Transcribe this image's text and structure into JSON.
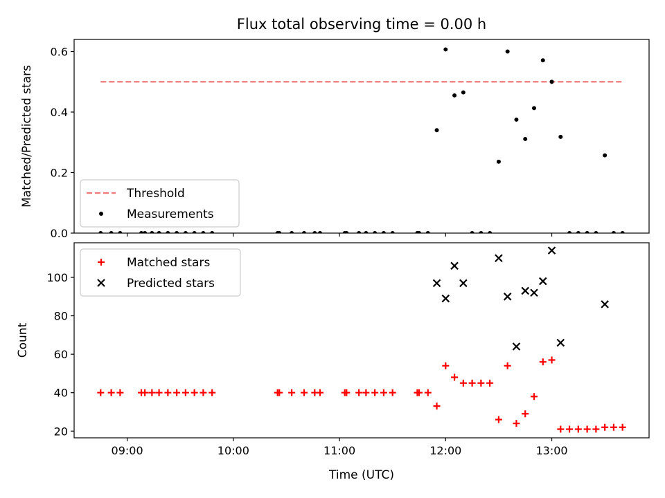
{
  "chart_data": [
    {
      "type": "scatter",
      "title": "Flux total observing time = 0.00 h",
      "xlabel": "",
      "ylabel": "Matched/Predicted stars",
      "xlim": [
        "08:30",
        "13:55"
      ],
      "ylim": [
        0,
        0.64
      ],
      "xticks": [
        "09:00",
        "10:00",
        "11:00",
        "12:00",
        "13:00"
      ],
      "yticks": [
        "0.0",
        "0.2",
        "0.4",
        "0.6"
      ],
      "legend_position": "lower-left",
      "threshold": {
        "name": "Threshold",
        "value": 0.5,
        "x_range": [
          "08:45",
          "13:40"
        ],
        "color": "#f07878",
        "style": "dashed"
      },
      "series": [
        {
          "name": "Measurements",
          "color": "#000000",
          "marker": "dot",
          "points": [
            [
              "08:45",
              0
            ],
            [
              "08:51",
              0
            ],
            [
              "08:56",
              0
            ],
            [
              "09:08",
              0
            ],
            [
              "09:10",
              0
            ],
            [
              "09:14",
              0
            ],
            [
              "09:18",
              0
            ],
            [
              "09:23",
              0
            ],
            [
              "09:28",
              0
            ],
            [
              "09:33",
              0
            ],
            [
              "09:38",
              0
            ],
            [
              "09:43",
              0
            ],
            [
              "09:48",
              0
            ],
            [
              "10:25",
              0
            ],
            [
              "10:26",
              0
            ],
            [
              "10:33",
              0
            ],
            [
              "10:40",
              0
            ],
            [
              "10:46",
              0
            ],
            [
              "10:49",
              0
            ],
            [
              "11:03",
              0
            ],
            [
              "11:04",
              0
            ],
            [
              "11:11",
              0
            ],
            [
              "11:15",
              0
            ],
            [
              "11:20",
              0
            ],
            [
              "11:25",
              0
            ],
            [
              "11:30",
              0
            ],
            [
              "11:44",
              0
            ],
            [
              "11:45",
              0
            ],
            [
              "11:50",
              0
            ],
            [
              "11:55",
              0.34
            ],
            [
              "12:00",
              0.607
            ],
            [
              "12:05",
              0.455
            ],
            [
              "12:10",
              0.465
            ],
            [
              "12:15",
              0
            ],
            [
              "12:20",
              0
            ],
            [
              "12:25",
              0
            ],
            [
              "12:30",
              0.236
            ],
            [
              "12:35",
              0.6
            ],
            [
              "12:40",
              0.375
            ],
            [
              "12:45",
              0.311
            ],
            [
              "12:50",
              0.413
            ],
            [
              "12:55",
              0.571
            ],
            [
              "13:00",
              0.5
            ],
            [
              "13:05",
              0.318
            ],
            [
              "13:10",
              0
            ],
            [
              "13:15",
              0
            ],
            [
              "13:20",
              0
            ],
            [
              "13:25",
              0
            ],
            [
              "13:30",
              0.257
            ],
            [
              "13:35",
              0
            ],
            [
              "13:40",
              0
            ]
          ]
        }
      ]
    },
    {
      "type": "scatter",
      "title": "",
      "xlabel": "Time (UTC)",
      "ylabel": "Count",
      "xlim": [
        "08:30",
        "13:55"
      ],
      "ylim": [
        16.5,
        118
      ],
      "xticks": [
        "09:00",
        "10:00",
        "11:00",
        "12:00",
        "13:00"
      ],
      "yticks": [
        "20",
        "40",
        "60",
        "80",
        "100"
      ],
      "legend_position": "upper-left",
      "series": [
        {
          "name": "Matched stars",
          "color": "#ff0000",
          "marker": "plus",
          "points": [
            [
              "08:45",
              40
            ],
            [
              "08:51",
              40
            ],
            [
              "08:56",
              40
            ],
            [
              "09:08",
              40
            ],
            [
              "09:10",
              40
            ],
            [
              "09:14",
              40
            ],
            [
              "09:18",
              40
            ],
            [
              "09:23",
              40
            ],
            [
              "09:28",
              40
            ],
            [
              "09:33",
              40
            ],
            [
              "09:38",
              40
            ],
            [
              "09:43",
              40
            ],
            [
              "09:48",
              40
            ],
            [
              "10:25",
              40
            ],
            [
              "10:26",
              40
            ],
            [
              "10:33",
              40
            ],
            [
              "10:40",
              40
            ],
            [
              "10:46",
              40
            ],
            [
              "10:49",
              40
            ],
            [
              "11:03",
              40
            ],
            [
              "11:04",
              40
            ],
            [
              "11:11",
              40
            ],
            [
              "11:15",
              40
            ],
            [
              "11:20",
              40
            ],
            [
              "11:25",
              40
            ],
            [
              "11:30",
              40
            ],
            [
              "11:44",
              40
            ],
            [
              "11:45",
              40
            ],
            [
              "11:50",
              40
            ],
            [
              "11:55",
              33
            ],
            [
              "12:00",
              54
            ],
            [
              "12:05",
              48
            ],
            [
              "12:10",
              45
            ],
            [
              "12:15",
              45
            ],
            [
              "12:20",
              45
            ],
            [
              "12:25",
              45
            ],
            [
              "12:30",
              26
            ],
            [
              "12:35",
              54
            ],
            [
              "12:40",
              24
            ],
            [
              "12:45",
              29
            ],
            [
              "12:50",
              38
            ],
            [
              "12:55",
              56
            ],
            [
              "13:00",
              57
            ],
            [
              "13:05",
              21
            ],
            [
              "13:10",
              21
            ],
            [
              "13:15",
              21
            ],
            [
              "13:20",
              21
            ],
            [
              "13:25",
              21
            ],
            [
              "13:30",
              22
            ],
            [
              "13:35",
              22
            ],
            [
              "13:40",
              22
            ]
          ]
        },
        {
          "name": "Predicted stars",
          "color": "#000000",
          "marker": "x",
          "points": [
            [
              "11:55",
              97
            ],
            [
              "12:00",
              89
            ],
            [
              "12:05",
              106
            ],
            [
              "12:10",
              97
            ],
            [
              "12:30",
              110
            ],
            [
              "12:35",
              90
            ],
            [
              "12:40",
              64
            ],
            [
              "12:45",
              93
            ],
            [
              "12:50",
              92
            ],
            [
              "12:55",
              98
            ],
            [
              "13:00",
              114
            ],
            [
              "13:05",
              66
            ],
            [
              "13:30",
              86
            ]
          ]
        }
      ]
    }
  ]
}
